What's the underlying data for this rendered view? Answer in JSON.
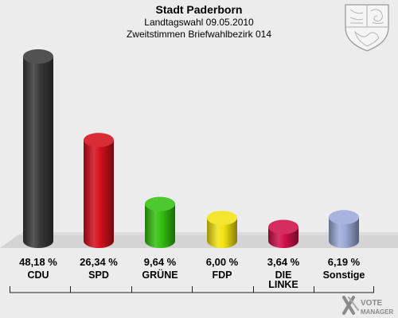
{
  "chart_data": {
    "type": "bar",
    "title": "Stadt Paderborn",
    "subtitle": "Landtagswahl 09.05.2010",
    "subtitle2": "Zweitstimmen Briefwahlbezirk 014",
    "unit": "%",
    "categories": [
      "CDU",
      "SPD",
      "GRÜNE",
      "FDP",
      "DIE\nLINKE",
      "Sonstige"
    ],
    "values": [
      48.18,
      26.34,
      9.64,
      6.0,
      3.64,
      6.19
    ],
    "value_labels": [
      "48,18 %",
      "26,34 %",
      "9,64 %",
      "6,00 %",
      "3,64 %",
      "6,19 %"
    ],
    "colors": [
      "#3a3a3a",
      "#d50f1c",
      "#35c011",
      "#f3e312",
      "#d0104a",
      "#9caad8"
    ],
    "xlabel": "",
    "ylabel": "",
    "grid": false,
    "legend": "none"
  },
  "branding": {
    "logo_line1": "VOTE",
    "logo_line2": "MANAGER",
    "emblem": "nrw-coat-of-arms"
  }
}
